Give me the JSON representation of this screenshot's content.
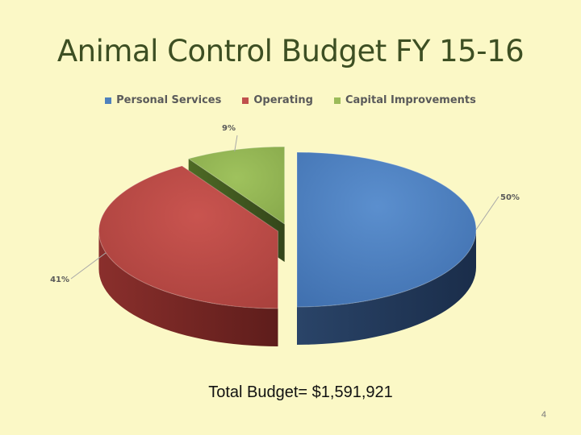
{
  "slide": {
    "title": "Animal Control Budget FY 15-16",
    "total_text": "Total Budget= $1,591,921",
    "page_number": "4"
  },
  "chart_data": {
    "type": "pie",
    "title": "Animal Control Budget FY 15-16",
    "legend_position": "top",
    "categories": [
      "Personal Services",
      "Operating",
      "Capital Improvements"
    ],
    "values": [
      50,
      41,
      9
    ],
    "labels": [
      "50%",
      "41%",
      "9%"
    ],
    "colors": [
      "#4f81bd",
      "#c0504d",
      "#9bbb59"
    ]
  }
}
